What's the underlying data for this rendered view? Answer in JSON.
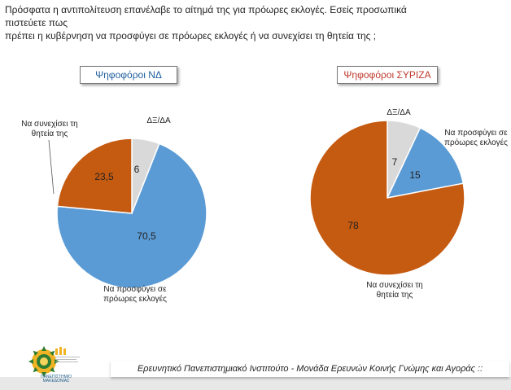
{
  "question": {
    "line1": "Πρόσφατα η αντιπολίτευση επανέλαβε το αίτημά της για πρόωρες εκλογές. Εσείς προσωπικά πιστεύετε πως",
    "line2": "πρέπει η κυβέρνηση να προσφύγει σε πρόωρες εκλογές ή να συνεχίσει τη θητεία της ;"
  },
  "colors": {
    "blue": "#5b9bd5",
    "orange": "#c55a11",
    "gray": "#d9d9d9",
    "nd_badge_text": "#1f5f9e",
    "syriza_badge_text": "#c0392b"
  },
  "chart_data": [
    {
      "type": "pie",
      "title": "Ψηφοφόροι ΝΔ",
      "categories": [
        "ΔΞ/ΔΑ",
        "Να προσφύγει σε πρόωρες εκλογές",
        "Να συνεχίσει τη θητεία της"
      ],
      "values": [
        6,
        70.5,
        23.5
      ],
      "value_labels": [
        "6",
        "70,5",
        "23,5"
      ],
      "label_lines": [
        [
          "ΔΞ/ΔΑ"
        ],
        [
          "Να προσφύγει  σε",
          "πρόωρες εκλογές"
        ],
        [
          "Να συνεχίσει τη",
          "θητεία της"
        ]
      ],
      "colors": [
        "#d9d9d9",
        "#5b9bd5",
        "#c55a11"
      ]
    },
    {
      "type": "pie",
      "title": "Ψηφοφόροι ΣΥΡΙΖΑ",
      "categories": [
        "ΔΞ/ΔΑ",
        "Να προσφύγει σε πρόωρες εκλογές",
        "Να συνεχίσει τη θητεία της"
      ],
      "values": [
        7,
        15,
        78
      ],
      "value_labels": [
        "7",
        "15",
        "78"
      ],
      "label_lines": [
        [
          "ΔΞ/ΔΑ"
        ],
        [
          "Να προσφύγει  σε",
          "πρόωρες εκλογές"
        ],
        [
          "Να συνεχίσει τη",
          "θητεία της"
        ]
      ],
      "colors": [
        "#d9d9d9",
        "#5b9bd5",
        "#c55a11"
      ]
    }
  ],
  "footer": {
    "text": "Ερευνητικό Πανεπιστημιακό Ινστιτούτο - Μονάδα Ερευνών Κοινής Γνώμης και Αγοράς ::"
  },
  "logo": {
    "line1": "ΠΑΝΕΠΙΣΤΗΜΙΟ",
    "line2": "ΜΑΚΕΔΟΝΙΑΣ",
    "icon": "university-sun-emblem-icon"
  }
}
